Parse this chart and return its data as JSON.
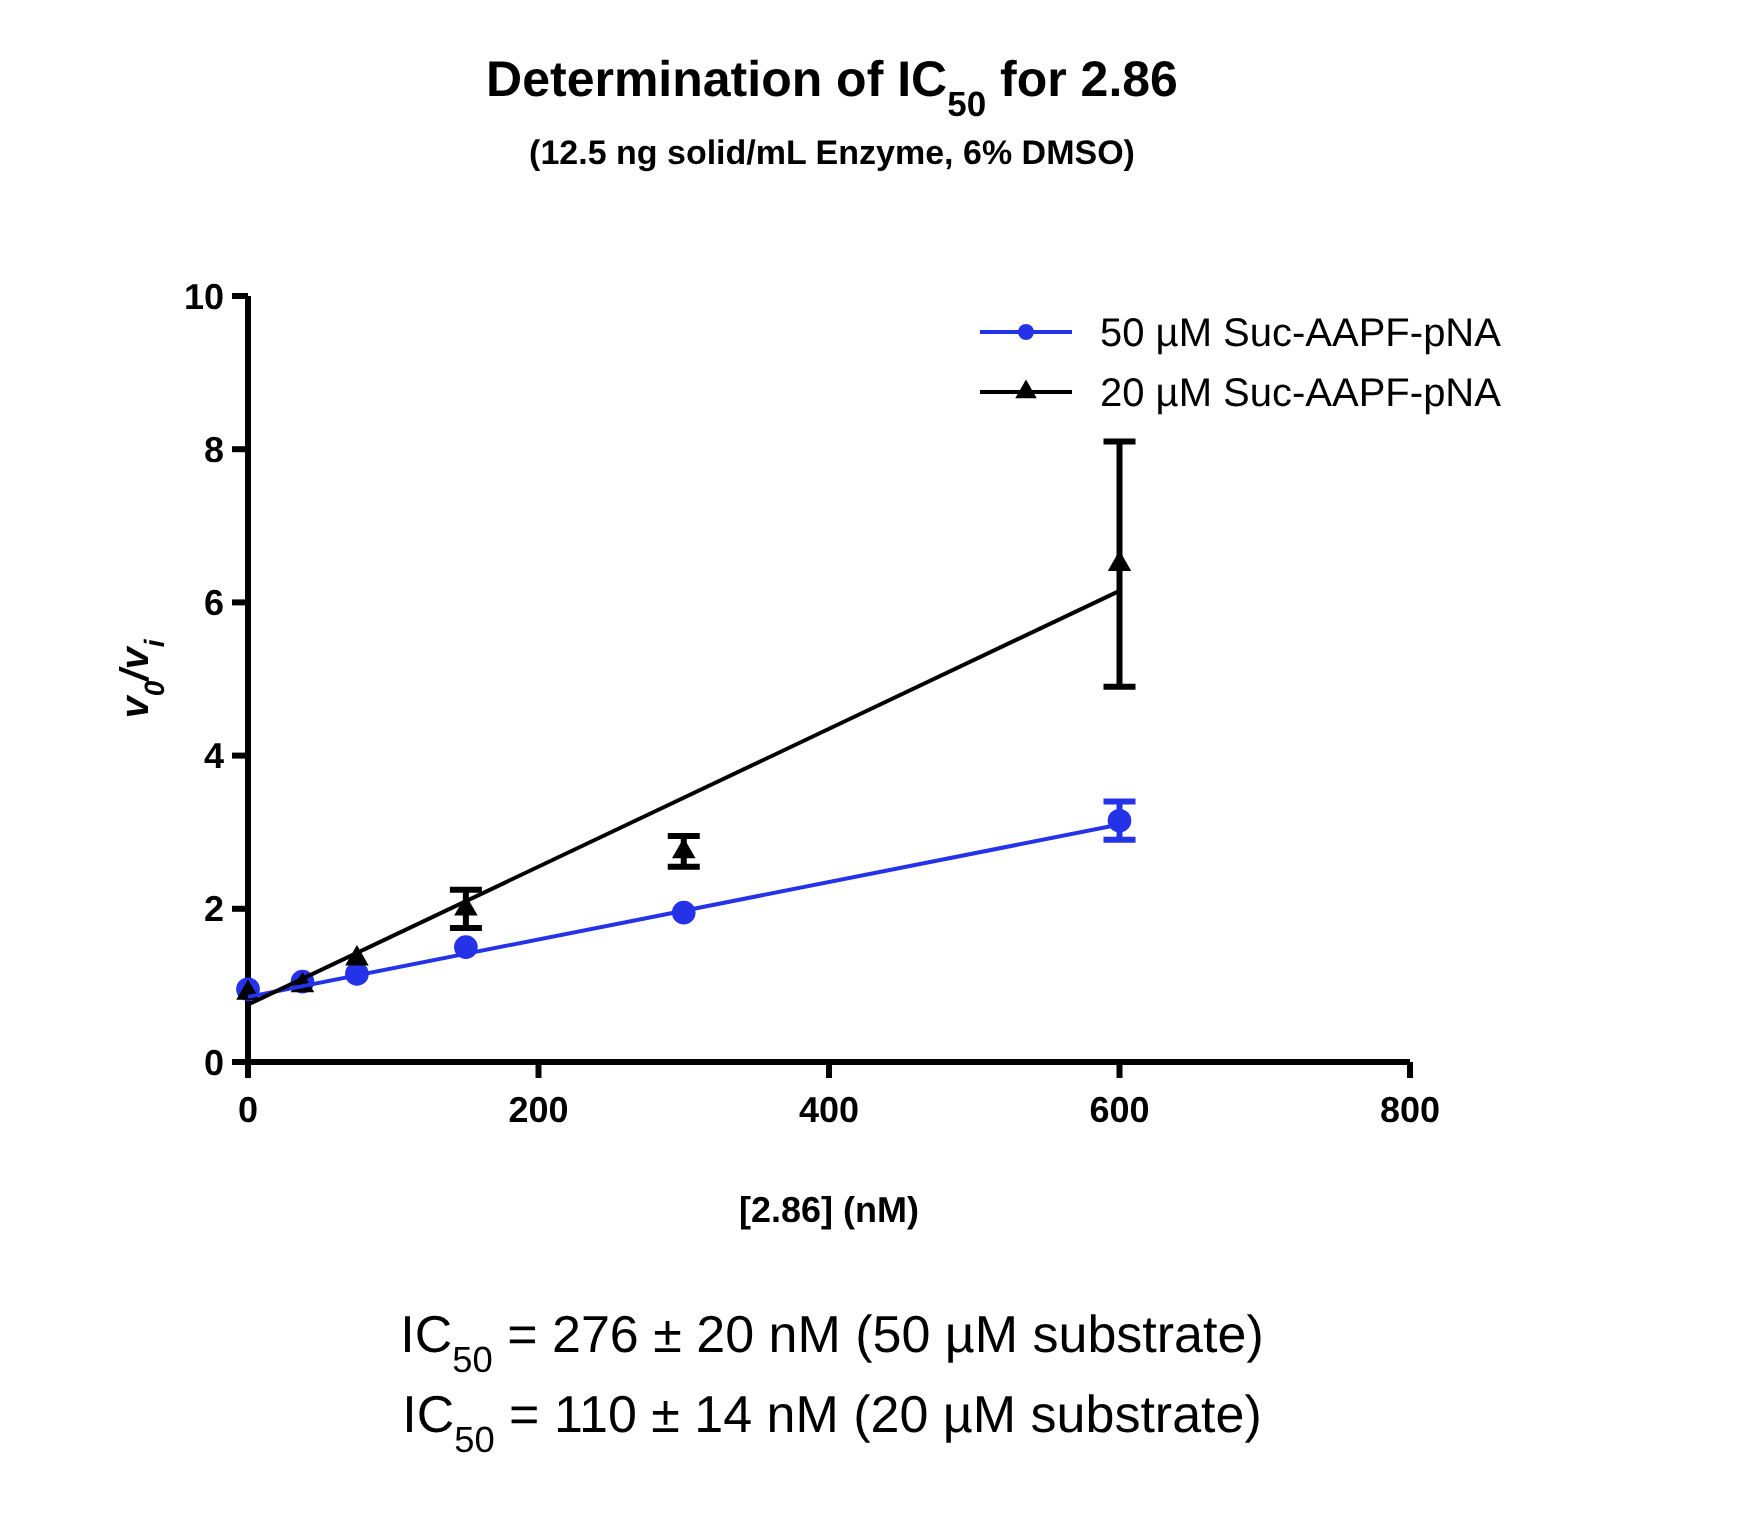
{
  "chart_data": {
    "type": "scatter",
    "title": "Determination of IC$_{50}$ for 2.86",
    "subtitle": "(12.5 ng solid/mL Enzyme, 6% DMSO)",
    "xlabel": "[2.86] (nM)",
    "ylabel": "v$_{0}$/v$_{i}$",
    "xlim": [
      0,
      800
    ],
    "xticks": [
      0,
      200,
      400,
      600,
      800
    ],
    "ylim": [
      0,
      10
    ],
    "yticks": [
      0,
      2,
      4,
      6,
      8,
      10
    ],
    "grid": false,
    "legend": "top right",
    "series": [
      {
        "name": "50 µM Suc-AAPF-pNA",
        "color": "#2432e8",
        "marker": "circle",
        "x": [
          0,
          37.5,
          75,
          150,
          300,
          600
        ],
        "values": [
          0.95,
          1.05,
          1.15,
          1.5,
          1.95,
          3.15
        ],
        "errors": [
          null,
          null,
          null,
          null,
          null,
          0.25
        ]
      },
      {
        "name": "20 µM Suc-AAPF-pNA",
        "color": "#000000",
        "marker": "triangle",
        "x": [
          0,
          37.5,
          75,
          150,
          300,
          600
        ],
        "values": [
          0.9,
          1.0,
          1.35,
          2.0,
          2.75,
          6.5
        ],
        "errors": [
          null,
          null,
          null,
          0.25,
          0.2,
          1.6
        ]
      },
      {
        "type": "line",
        "color": "#2432e8",
        "marker": "none",
        "x": [
          0,
          600
        ],
        "values": [
          0.85,
          3.1
        ]
      },
      {
        "type": "line",
        "color": "#000000",
        "marker": "none",
        "x": [
          0,
          600
        ],
        "values": [
          0.75,
          6.15
        ]
      }
    ],
    "annotations": [
      "IC$_{50}$ = 276 ± 20 nM (50 µM substrate)",
      "IC$_{50}$ = 110 ± 14 nM (20 µM substrate)"
    ]
  }
}
